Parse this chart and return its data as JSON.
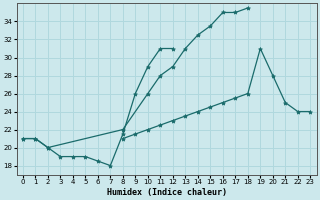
{
  "xlabel": "Humidex (Indice chaleur)",
  "background_color": "#cce8ec",
  "grid_color": "#b0d8de",
  "line_color": "#1a6b6b",
  "xlim": [
    -0.5,
    23.5
  ],
  "ylim": [
    17,
    36
  ],
  "xticks": [
    0,
    1,
    2,
    3,
    4,
    5,
    6,
    7,
    8,
    9,
    10,
    11,
    12,
    13,
    14,
    15,
    16,
    17,
    18,
    19,
    20,
    21,
    22,
    23
  ],
  "yticks": [
    18,
    20,
    22,
    24,
    26,
    28,
    30,
    32,
    34
  ],
  "line1_x": [
    0,
    1,
    2,
    3,
    4,
    5,
    6,
    7,
    8,
    9,
    10,
    11,
    12
  ],
  "line1_y": [
    21,
    21,
    20,
    19,
    19,
    19,
    18.5,
    18,
    21.5,
    26,
    29,
    31,
    31
  ],
  "line2_x": [
    0,
    1,
    2,
    8,
    10,
    11,
    12,
    13,
    14,
    15,
    16,
    17,
    18
  ],
  "line2_y": [
    21,
    21,
    20,
    22,
    26,
    28,
    29,
    31,
    32.5,
    33.5,
    35,
    35,
    35.5
  ],
  "line3_x": [
    8,
    9,
    10,
    11,
    12,
    13,
    14,
    15,
    16,
    17,
    18,
    19,
    20,
    21,
    22,
    23
  ],
  "line3_y": [
    21,
    21.5,
    22,
    22.5,
    23,
    23.5,
    24,
    24.5,
    25,
    25.5,
    26,
    31,
    28,
    25,
    24,
    24
  ]
}
